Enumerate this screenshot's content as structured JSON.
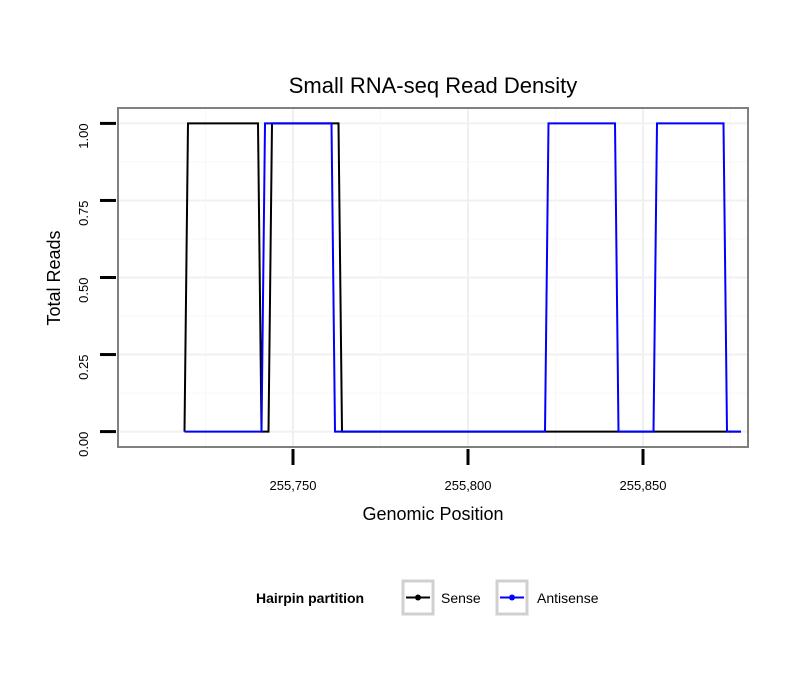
{
  "chart_data": {
    "type": "line",
    "title": "Small RNA-seq Read Density",
    "xlabel": "Genomic Position",
    "ylabel": "Total Reads",
    "xlim": [
      255700,
      255880
    ],
    "ylim": [
      -0.05,
      1.05
    ],
    "x_ticks": [
      255750,
      255800,
      255850
    ],
    "x_tick_labels": [
      "255,750",
      "255,800",
      "255,850"
    ],
    "y_ticks": [
      0,
      0.25,
      0.5,
      0.75,
      1.0
    ],
    "y_tick_labels": [
      "0.00",
      "0.25",
      "0.50",
      "0.75",
      "1.00"
    ],
    "grid": true,
    "legend": {
      "title": "Hairpin partition",
      "position": "bottom"
    },
    "series": [
      {
        "name": "Sense",
        "color": "#000000",
        "x": [
          255719,
          255720,
          255740,
          255741,
          255743,
          255744,
          255763,
          255764,
          255878
        ],
        "y": [
          0,
          1,
          1,
          0,
          0,
          1,
          1,
          0,
          0
        ]
      },
      {
        "name": "Antisense",
        "color": "#0000ff",
        "x": [
          255719,
          255741,
          255742,
          255761,
          255762,
          255822,
          255823,
          255842,
          255843,
          255853,
          255854,
          255873,
          255874,
          255878
        ],
        "y": [
          0,
          0,
          1,
          1,
          0,
          0,
          1,
          1,
          0,
          0,
          1,
          1,
          0,
          0
        ]
      }
    ]
  }
}
